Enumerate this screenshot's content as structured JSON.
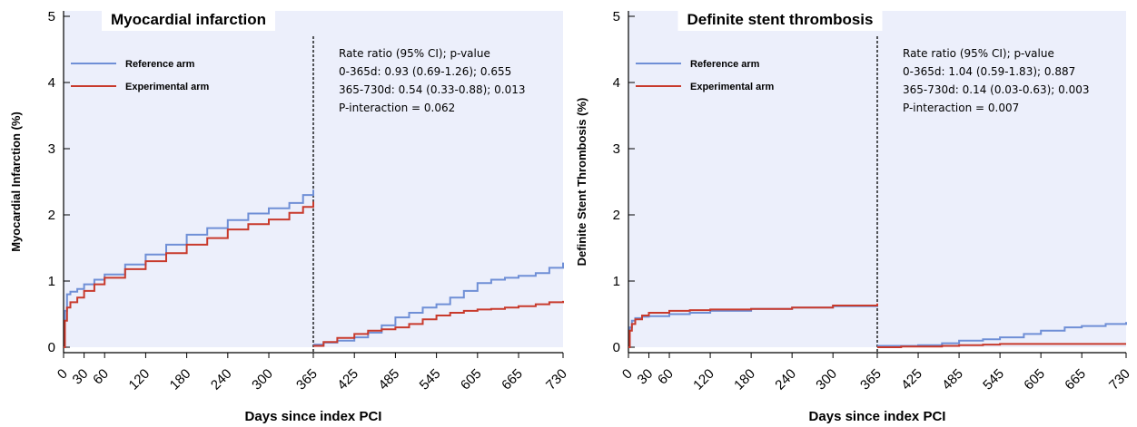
{
  "chart_data": [
    {
      "type": "line",
      "title": "Myocardial infarction",
      "xlabel": "Days since index PCI",
      "ylabel": "Myocardial Infarction  (%)",
      "xlim": [
        0,
        730
      ],
      "ylim": [
        0,
        5
      ],
      "x_ticks": [
        0,
        30,
        60,
        120,
        180,
        240,
        300,
        365,
        425,
        485,
        545,
        605,
        665,
        730
      ],
      "y_ticks": [
        0,
        1,
        2,
        3,
        4,
        5
      ],
      "landmark_x": 365,
      "legend": {
        "position": "top-left"
      },
      "annotation_lines": [
        "Rate ratio (95% CI); p-value",
        "0-365d: 0.93 (0.69-1.26); 0.655",
        "365-730d: 0.54 (0.33-0.88); 0.013",
        "P-interaction = 0.062"
      ],
      "colors": {
        "reference": "#6f8fd6",
        "experimental": "#c83a2c",
        "background": "#eceffb"
      },
      "series": [
        {
          "name": "Reference arm",
          "segments": [
            {
              "x": [
                0,
                2,
                5,
                10,
                20,
                30,
                45,
                60,
                90,
                120,
                150,
                180,
                210,
                240,
                270,
                300,
                330,
                350,
                365
              ],
              "y": [
                0,
                0.55,
                0.8,
                0.84,
                0.88,
                0.95,
                1.02,
                1.1,
                1.25,
                1.4,
                1.55,
                1.7,
                1.8,
                1.92,
                2.02,
                2.1,
                2.18,
                2.3,
                2.38
              ]
            },
            {
              "x": [
                365,
                380,
                400,
                425,
                445,
                465,
                485,
                505,
                525,
                545,
                565,
                585,
                605,
                625,
                645,
                665,
                690,
                710,
                730
              ],
              "y": [
                0.04,
                0.07,
                0.1,
                0.15,
                0.22,
                0.33,
                0.45,
                0.52,
                0.6,
                0.65,
                0.75,
                0.85,
                0.97,
                1.02,
                1.05,
                1.08,
                1.12,
                1.2,
                1.28
              ]
            }
          ]
        },
        {
          "name": "Experimental arm",
          "segments": [
            {
              "x": [
                0,
                2,
                5,
                10,
                20,
                30,
                45,
                60,
                90,
                120,
                150,
                180,
                210,
                240,
                270,
                300,
                330,
                350,
                365
              ],
              "y": [
                0,
                0.4,
                0.6,
                0.68,
                0.75,
                0.85,
                0.95,
                1.05,
                1.18,
                1.3,
                1.42,
                1.55,
                1.65,
                1.78,
                1.86,
                1.93,
                2.03,
                2.12,
                2.2
              ]
            },
            {
              "x": [
                365,
                380,
                400,
                425,
                445,
                465,
                485,
                505,
                525,
                545,
                565,
                585,
                605,
                625,
                645,
                665,
                690,
                710,
                730
              ],
              "y": [
                0.02,
                0.08,
                0.14,
                0.2,
                0.25,
                0.27,
                0.3,
                0.35,
                0.42,
                0.48,
                0.52,
                0.55,
                0.57,
                0.58,
                0.6,
                0.62,
                0.65,
                0.68,
                0.7
              ]
            }
          ]
        }
      ]
    },
    {
      "type": "line",
      "title": "Definite stent thrombosis",
      "xlabel": "Days since index PCI",
      "ylabel": "Definite Stent Thrombosis (%)",
      "xlim": [
        0,
        730
      ],
      "ylim": [
        0,
        5
      ],
      "x_ticks": [
        0,
        30,
        60,
        120,
        180,
        240,
        300,
        365,
        425,
        485,
        545,
        605,
        665,
        730
      ],
      "y_ticks": [
        0,
        1,
        2,
        3,
        4,
        5
      ],
      "landmark_x": 365,
      "legend": {
        "position": "top-left"
      },
      "annotation_lines": [
        "Rate ratio (95% CI); p-value",
        "0-365d: 1.04 (0.59-1.83); 0.887",
        "365-730d: 0.14 (0.03-0.63); 0.003",
        "P-interaction = 0.007"
      ],
      "colors": {
        "reference": "#6f8fd6",
        "experimental": "#c83a2c",
        "background": "#eceffb"
      },
      "series": [
        {
          "name": "Reference arm",
          "segments": [
            {
              "x": [
                0,
                2,
                5,
                10,
                20,
                30,
                60,
                90,
                120,
                180,
                240,
                300,
                365
              ],
              "y": [
                0,
                0.3,
                0.4,
                0.44,
                0.46,
                0.47,
                0.5,
                0.52,
                0.55,
                0.58,
                0.6,
                0.62,
                0.63
              ]
            },
            {
              "x": [
                365,
                400,
                425,
                460,
                485,
                520,
                545,
                580,
                605,
                640,
                665,
                700,
                730
              ],
              "y": [
                0.02,
                0.02,
                0.03,
                0.06,
                0.1,
                0.12,
                0.15,
                0.2,
                0.25,
                0.3,
                0.32,
                0.35,
                0.38
              ]
            }
          ]
        },
        {
          "name": "Experimental arm",
          "segments": [
            {
              "x": [
                0,
                2,
                5,
                10,
                20,
                30,
                60,
                90,
                120,
                180,
                240,
                300,
                365
              ],
              "y": [
                0,
                0.25,
                0.35,
                0.42,
                0.48,
                0.52,
                0.55,
                0.56,
                0.57,
                0.58,
                0.6,
                0.63,
                0.66
              ]
            },
            {
              "x": [
                365,
                400,
                425,
                460,
                485,
                520,
                545,
                580,
                605,
                640,
                665,
                700,
                730
              ],
              "y": [
                0,
                0.01,
                0.01,
                0.02,
                0.03,
                0.04,
                0.05,
                0.05,
                0.05,
                0.05,
                0.05,
                0.05,
                0.05
              ]
            }
          ]
        }
      ]
    }
  ]
}
